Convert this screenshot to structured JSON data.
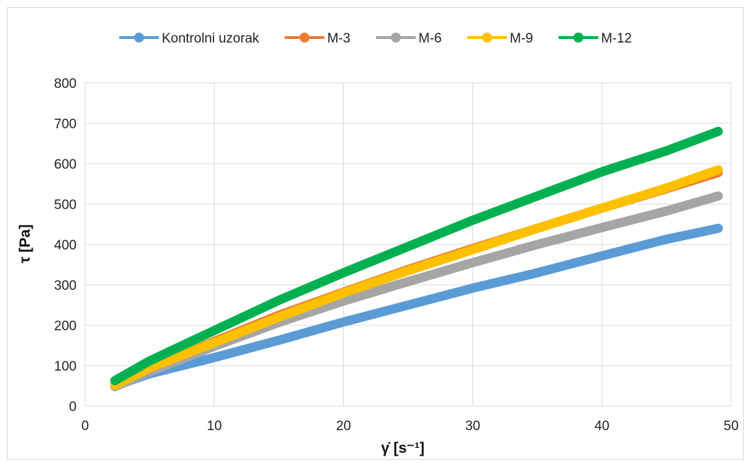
{
  "chart_data": {
    "type": "line",
    "xlabel": "γ̇  [s⁻¹]",
    "ylabel": "τ [Pa]",
    "xlim": [
      0,
      50
    ],
    "ylim": [
      0,
      800
    ],
    "x_ticks": [
      "0",
      "10",
      "20",
      "30",
      "40",
      "50"
    ],
    "y_ticks": [
      "0",
      "100",
      "200",
      "300",
      "400",
      "500",
      "600",
      "700",
      "800"
    ],
    "grid": true,
    "legend_position": "top",
    "series": [
      {
        "name": "Kontrolni uzorak",
        "color": "#5B9BD5",
        "x": [
          2.3,
          5,
          10,
          15,
          20,
          25,
          30,
          35,
          40,
          45,
          49
        ],
        "y": [
          50,
          80,
          120,
          163,
          208,
          250,
          292,
          330,
          372,
          413,
          440
        ]
      },
      {
        "name": "M-3",
        "color": "#ED7D31",
        "x": [
          2.3,
          5,
          10,
          15,
          20,
          25,
          30,
          35,
          40,
          45,
          49
        ],
        "y": [
          50,
          92,
          160,
          225,
          282,
          338,
          390,
          440,
          490,
          538,
          578
        ]
      },
      {
        "name": "M-6",
        "color": "#A5A5A5",
        "x": [
          2.3,
          5,
          10,
          15,
          20,
          25,
          30,
          35,
          40,
          45,
          49
        ],
        "y": [
          48,
          85,
          148,
          207,
          260,
          308,
          355,
          400,
          442,
          483,
          520
        ]
      },
      {
        "name": "M-9",
        "color": "#FFC000",
        "x": [
          2.3,
          5,
          10,
          15,
          20,
          25,
          30,
          35,
          40,
          45,
          49
        ],
        "y": [
          52,
          95,
          157,
          220,
          280,
          335,
          387,
          440,
          490,
          540,
          585
        ]
      },
      {
        "name": "M-12",
        "color": "#00B050",
        "x": [
          2.3,
          5,
          10,
          15,
          20,
          25,
          30,
          35,
          40,
          45,
          49
        ],
        "y": [
          63,
          112,
          187,
          262,
          330,
          395,
          460,
          520,
          580,
          632,
          680
        ]
      }
    ]
  }
}
